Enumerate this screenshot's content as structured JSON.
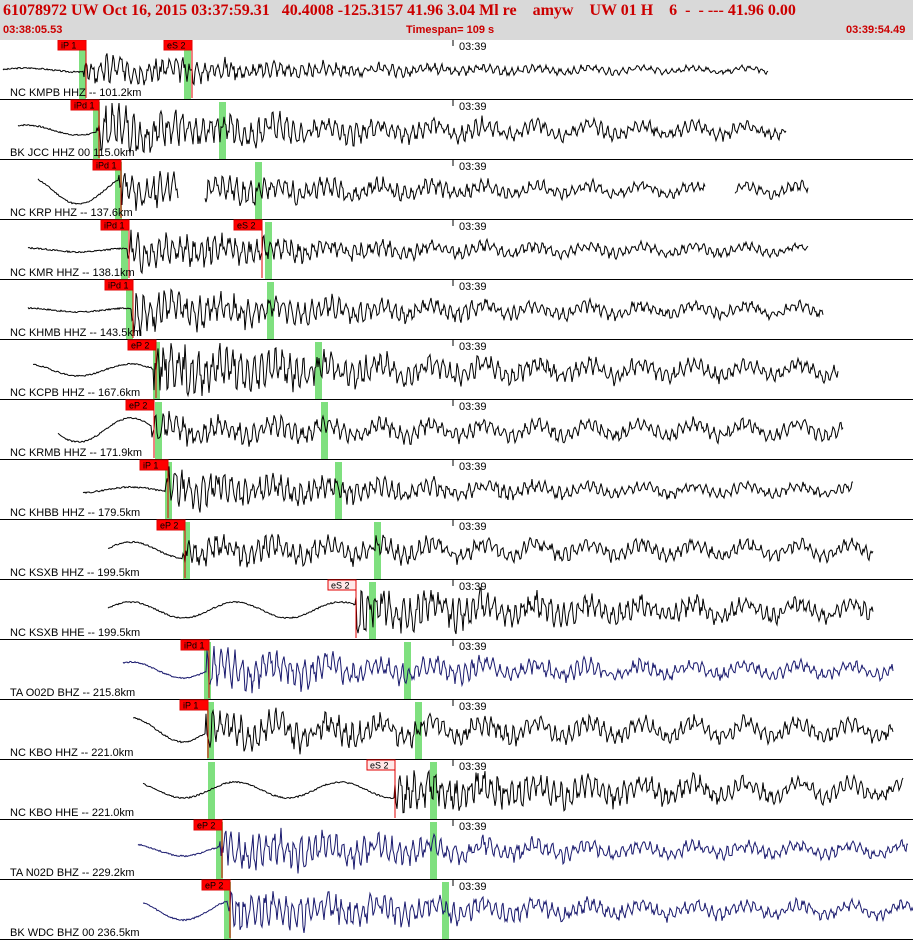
{
  "header": {
    "title": "61078972 UW Oct 16, 2015 03:37:59.31   40.4008 -125.3157 41.96 3.04 Ml re    amyw    UW 01 H    6  -  - --- 41.96 0.00",
    "start_time": "03:38:05.53",
    "timespan": "Timespan= 109 s",
    "end_time": "03:39:54.49"
  },
  "tick_label": "03:39",
  "colors": {
    "header_text": "#cc0000",
    "header_bg": "#d9d9d9",
    "pick_flag": "#ff0000",
    "predicted_marker": "#7fe07f",
    "trace_black": "#000000",
    "trace_navy": "#1a1a6e"
  },
  "channels": [
    {
      "label": "NC KMPB HHZ -- 101.2km",
      "color": "#000000",
      "picks": [
        {
          "text": "iP 1",
          "style": "solid"
        },
        {
          "text": "eS 2",
          "style": "solid"
        }
      ]
    },
    {
      "label": "BK JCC HHZ 00 115.0km",
      "color": "#000000",
      "picks": [
        {
          "text": "iPd 1",
          "style": "solid"
        }
      ]
    },
    {
      "label": "NC KRP HHZ -- 137.6km",
      "color": "#000000",
      "picks": [
        {
          "text": "iPd 1",
          "style": "solid"
        }
      ]
    },
    {
      "label": "NC KMR HHZ -- 138.1km",
      "color": "#000000",
      "picks": [
        {
          "text": "iPd 1",
          "style": "solid"
        },
        {
          "text": "eS 2",
          "style": "solid"
        }
      ]
    },
    {
      "label": "NC KHMB HHZ -- 143.5km",
      "color": "#000000",
      "picks": [
        {
          "text": "iPd 1",
          "style": "solid"
        }
      ]
    },
    {
      "label": "NC KCPB HHZ -- 167.6km",
      "color": "#000000",
      "picks": [
        {
          "text": "eP 2",
          "style": "solid"
        }
      ]
    },
    {
      "label": "NC KRMB HHZ -- 171.9km",
      "color": "#000000",
      "picks": [
        {
          "text": "eP 2",
          "style": "solid"
        }
      ]
    },
    {
      "label": "NC KHBB HHZ -- 179.5km",
      "color": "#000000",
      "picks": [
        {
          "text": "iP 1",
          "style": "solid"
        }
      ]
    },
    {
      "label": "NC KSXB HHZ -- 199.5km",
      "color": "#000000",
      "picks": [
        {
          "text": "eP 2",
          "style": "solid"
        }
      ]
    },
    {
      "label": "NC KSXB HHE -- 199.5km",
      "color": "#000000",
      "picks": [
        {
          "text": "eS 2",
          "style": "outline"
        }
      ]
    },
    {
      "label": "TA O02D BHZ -- 215.8km",
      "color": "#1a1a6e",
      "picks": [
        {
          "text": "iPd 1",
          "style": "solid"
        }
      ]
    },
    {
      "label": "NC KBO HHZ -- 221.0km",
      "color": "#000000",
      "picks": [
        {
          "text": "iP 1",
          "style": "solid"
        }
      ]
    },
    {
      "label": "NC KBO HHE -- 221.0km",
      "color": "#000000",
      "picks": [
        {
          "text": "eS 2",
          "style": "outline"
        }
      ]
    },
    {
      "label": "TA N02D BHZ -- 229.2km",
      "color": "#1a1a6e",
      "picks": [
        {
          "text": "eP 2",
          "style": "solid"
        }
      ]
    },
    {
      "label": "BK WDC BHZ 00 236.5km",
      "color": "#1a1a6e",
      "picks": [
        {
          "text": "eP 2",
          "style": "solid"
        }
      ]
    }
  ]
}
